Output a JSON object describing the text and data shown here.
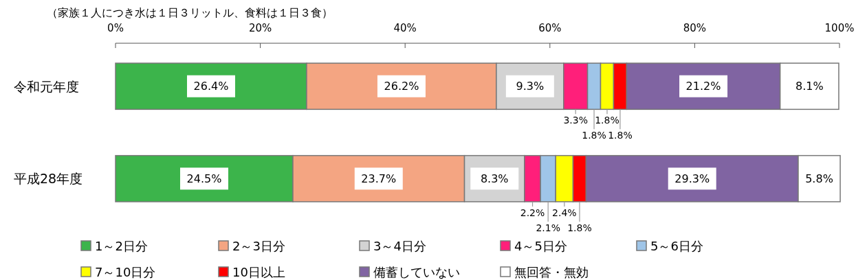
{
  "chart_data": {
    "type": "bar",
    "orientation": "horizontal",
    "stacked": true,
    "title": "（家族１人につき水は１日３リットル、食料は１日３食）",
    "categories": [
      "令和元年度",
      "平成28年度"
    ],
    "series": [
      {
        "name": "1～2日分",
        "color": "#3cb44b",
        "values": [
          26.4,
          24.5
        ],
        "value_labels": [
          "26.4%",
          "24.5%"
        ]
      },
      {
        "name": "2～3日分",
        "color": "#f4a582",
        "values": [
          26.2,
          23.7
        ],
        "value_labels": [
          "26.2%",
          "23.7%"
        ]
      },
      {
        "name": "3～4日分",
        "color": "#d3d3d3",
        "values": [
          9.3,
          8.3
        ],
        "value_labels": [
          "9.3%",
          "8.3%"
        ]
      },
      {
        "name": "4～5日分",
        "color": "#ff1f7a",
        "values": [
          3.3,
          2.2
        ],
        "value_labels": [
          "3.3%",
          "2.2%"
        ]
      },
      {
        "name": "5～6日分",
        "color": "#9fc5e8",
        "values": [
          1.8,
          2.1
        ],
        "value_labels": [
          "1.8%",
          "2.1%"
        ]
      },
      {
        "name": "7～10日分",
        "color": "#ffff00",
        "values": [
          1.8,
          2.4
        ],
        "value_labels": [
          "1.8%",
          "2.4%"
        ]
      },
      {
        "name": "10日以上",
        "color": "#ff0000",
        "values": [
          1.8,
          1.8
        ],
        "value_labels": [
          "1.8%",
          "1.8%"
        ]
      },
      {
        "name": "備蓄していない",
        "color": "#8064a2",
        "values": [
          21.2,
          29.3
        ],
        "value_labels": [
          "21.2%",
          "29.3%"
        ]
      },
      {
        "name": "無回答・無効",
        "color": "#ffffff",
        "values": [
          8.1,
          5.8
        ],
        "value_labels": [
          "8.1%",
          "5.8%"
        ]
      }
    ],
    "xlim": [
      0,
      100
    ],
    "xticks": [
      {
        "value": 0,
        "label": "0%"
      },
      {
        "value": 20,
        "label": "20%"
      },
      {
        "value": 40,
        "label": "40%"
      },
      {
        "value": 60,
        "label": "60%"
      },
      {
        "value": 80,
        "label": "80%"
      },
      {
        "value": 100,
        "label": "100%"
      }
    ],
    "legend": "bottom",
    "grid": false
  }
}
